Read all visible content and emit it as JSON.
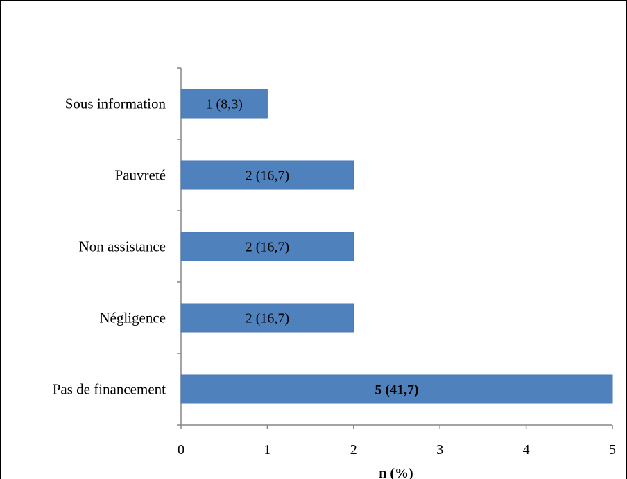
{
  "chart_data": {
    "type": "bar",
    "orientation": "horizontal",
    "categories": [
      "Sous information",
      "Pauvreté",
      "Non assistance",
      "Négligence",
      "Pas de financement"
    ],
    "values": [
      1,
      2,
      2,
      2,
      5
    ],
    "data_labels": [
      "1 (8,3)",
      "2 (16,7)",
      "2 (16,7)",
      "2 (16,7)",
      "5 (41,7)"
    ],
    "bold_labels": [
      false,
      false,
      false,
      false,
      true
    ],
    "xlabel": "n (%)",
    "xlim": [
      0,
      5
    ],
    "xticks": [
      "0",
      "1",
      "2",
      "3",
      "4",
      "5"
    ],
    "grid": false,
    "bar_color": "#4F81BD",
    "bar_edge_color": "#4A7AB5"
  }
}
